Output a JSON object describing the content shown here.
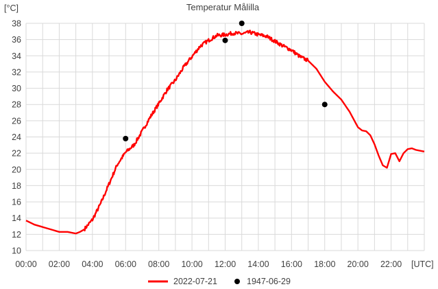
{
  "chart_data": {
    "type": "line",
    "title": "Temperatur Målilla",
    "ylabel": "[°C]",
    "xunit": "[UTC]",
    "xlim": [
      0,
      24
    ],
    "ylim": [
      10,
      38
    ],
    "grid": true,
    "legend_position": "bottom",
    "x_ticks": [
      "00:00",
      "02:00",
      "04:00",
      "06:00",
      "08:00",
      "10:00",
      "12:00",
      "14:00",
      "16:00",
      "18:00",
      "20:00",
      "22:00"
    ],
    "y_ticks": [
      10,
      12,
      14,
      16,
      18,
      20,
      22,
      24,
      26,
      28,
      30,
      32,
      34,
      36,
      38
    ],
    "series": [
      {
        "name": "2022-07-21",
        "kind": "line",
        "color": "#ff0000",
        "x": [
          0,
          0.5,
          1,
          1.5,
          2,
          2.5,
          3,
          3.25,
          3.5,
          4,
          4.5,
          5,
          5.5,
          6,
          6.5,
          7,
          7.5,
          8,
          8.5,
          9,
          9.5,
          10,
          10.5,
          11,
          11.5,
          12,
          12.5,
          13,
          13.5,
          14,
          14.5,
          15,
          15.5,
          16,
          16.5,
          17,
          17.5,
          18,
          18.5,
          19,
          19.5,
          20,
          20.25,
          20.5,
          20.75,
          21,
          21.25,
          21.5,
          21.75,
          22,
          22.25,
          22.5,
          22.75,
          23,
          23.25,
          23.5,
          24
        ],
        "values": [
          13.7,
          13.2,
          12.9,
          12.6,
          12.3,
          12.3,
          12.1,
          12.3,
          12.6,
          13.8,
          15.8,
          18.2,
          20.6,
          22.1,
          23.0,
          24.7,
          26.5,
          28.1,
          29.8,
          31.0,
          32.6,
          33.9,
          35.2,
          35.9,
          36.5,
          36.6,
          36.8,
          36.7,
          36.9,
          36.6,
          36.4,
          35.8,
          35.2,
          34.7,
          33.9,
          33.4,
          32.4,
          30.8,
          29.6,
          28.6,
          27.1,
          25.2,
          24.8,
          24.7,
          24.2,
          23.1,
          21.7,
          20.5,
          20.2,
          21.9,
          22.0,
          21.0,
          22.0,
          22.5,
          22.6,
          22.4,
          22.2
        ]
      },
      {
        "name": "1947-06-29",
        "kind": "scatter",
        "color": "#000000",
        "x": [
          6,
          12,
          13,
          18
        ],
        "values": [
          23.8,
          35.9,
          38.0,
          28.0
        ]
      }
    ]
  }
}
